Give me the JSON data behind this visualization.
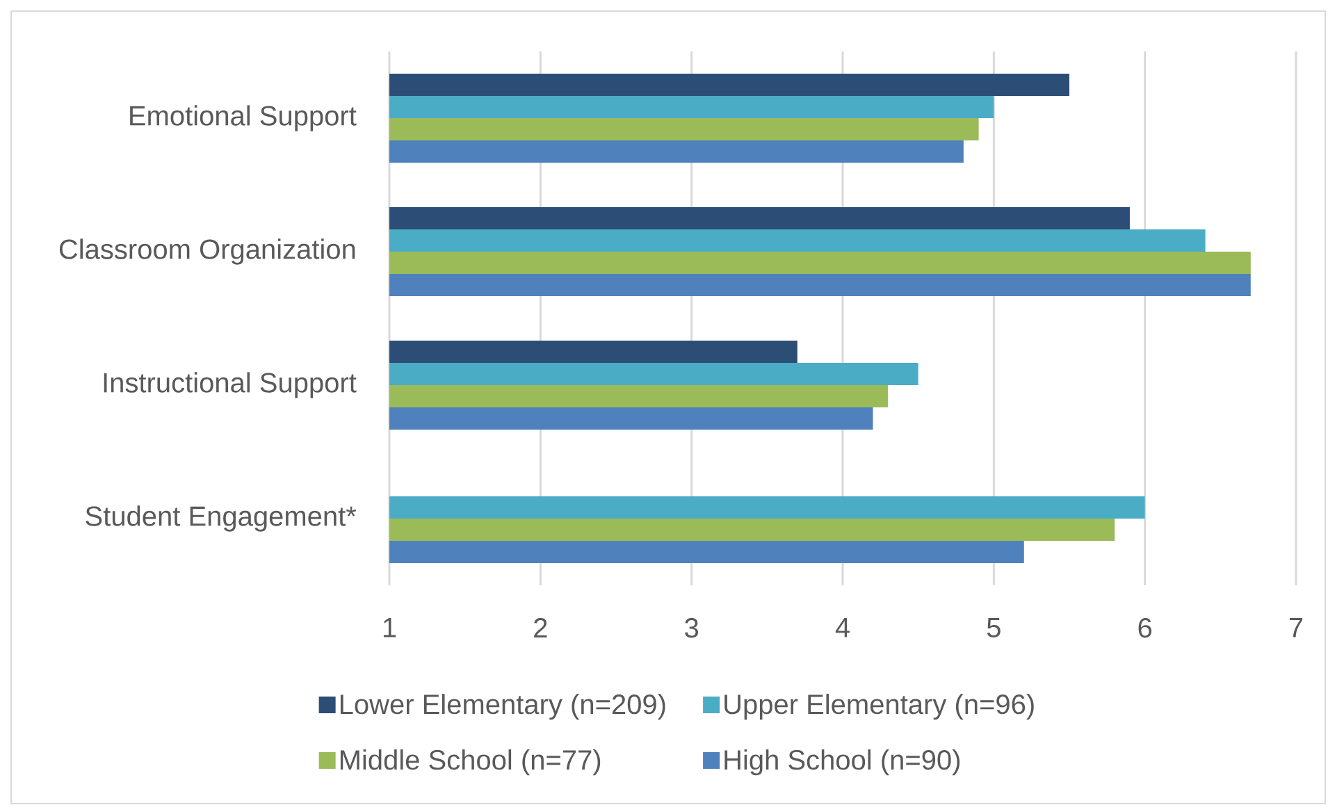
{
  "chart_data": {
    "type": "bar",
    "orientation": "horizontal",
    "categories": [
      "Emotional Support",
      "Classroom Organization",
      "Instructional Support",
      "Student Engagement*"
    ],
    "series": [
      {
        "name": "Lower Elementary (n=209)",
        "color": "#2c4d75",
        "values": [
          5.5,
          5.9,
          3.7,
          null
        ]
      },
      {
        "name": "Upper Elementary (n=96)",
        "color": "#4bacc6",
        "values": [
          5.0,
          6.4,
          4.5,
          6.0
        ]
      },
      {
        "name": "Middle School (n=77)",
        "color": "#9bbb59",
        "values": [
          4.9,
          6.7,
          4.3,
          5.8
        ]
      },
      {
        "name": "High School (n=90)",
        "color": "#4f81bd",
        "values": [
          4.8,
          6.7,
          4.2,
          5.2
        ]
      }
    ],
    "xlim": [
      1,
      7
    ],
    "xticks": [
      1,
      2,
      3,
      4,
      5,
      6,
      7
    ],
    "grid": "x",
    "legend": "bottom"
  }
}
